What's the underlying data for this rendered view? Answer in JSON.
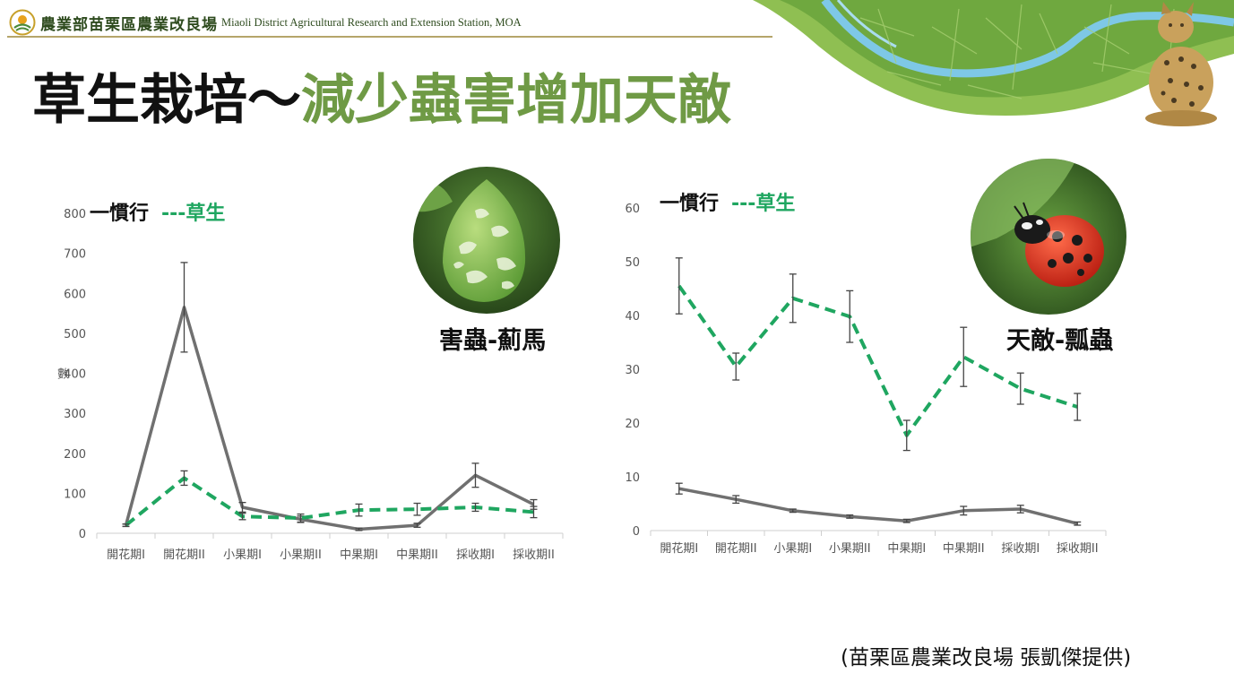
{
  "header": {
    "org_zh": "農業部苗栗區農業改良場",
    "org_en": "Miaoli District Agricultural Research and Extension Station, MOA"
  },
  "title": {
    "part1": "草生栽培～",
    "part2": "減少蟲害增加天敵"
  },
  "credit": "(苗栗區農業改良場 張凱傑提供)",
  "photos": {
    "pest_label": "害蟲-薊馬",
    "enemy_label": "天敵-瓢蟲"
  },
  "colors": {
    "conventional": "#707070",
    "grass": "#1fa660",
    "title_accent": "#6f9a45"
  },
  "chart_data": [
    {
      "type": "line",
      "title": "",
      "xlabel": "",
      "ylabel": "數",
      "ylim": [
        0,
        800
      ],
      "yticks": [
        "0",
        "100",
        "200",
        "300",
        "400",
        "500",
        "600",
        "700",
        "800"
      ],
      "legend_placement": "top-left",
      "categories": [
        "開花期I",
        "開花期II",
        "小果期I",
        "小果期II",
        "中果期I",
        "中果期II",
        "採收期I",
        "採收期II"
      ],
      "series": [
        {
          "name": "慣行",
          "legend_marker": "一",
          "style": "solid",
          "values": [
            20,
            565,
            65,
            35,
            10,
            20,
            145,
            72
          ],
          "errors": [
            3,
            112,
            12,
            8,
            3,
            5,
            30,
            12
          ]
        },
        {
          "name": "草生",
          "legend_marker": "---",
          "style": "dashed",
          "values": [
            20,
            138,
            42,
            38,
            58,
            60,
            65,
            53
          ],
          "errors": [
            3,
            18,
            8,
            10,
            15,
            15,
            10,
            14
          ]
        }
      ]
    },
    {
      "type": "line",
      "title": "",
      "xlabel": "",
      "ylabel": "",
      "ylim": [
        0,
        60
      ],
      "yticks": [
        "0",
        "10",
        "20",
        "30",
        "40",
        "50",
        "60"
      ],
      "legend_placement": "top-left",
      "categories": [
        "開花期I",
        "開花期II",
        "小果期I",
        "小果期II",
        "中果期I",
        "中果期II",
        "採收期I",
        "採收期II"
      ],
      "series": [
        {
          "name": "慣行",
          "legend_marker": "一",
          "style": "solid",
          "values": [
            7.8,
            5.8,
            3.7,
            2.6,
            1.8,
            3.7,
            4.0,
            1.3
          ],
          "errors": [
            1.0,
            0.7,
            0.3,
            0.3,
            0.3,
            0.8,
            0.7,
            0.3
          ]
        },
        {
          "name": "草生",
          "legend_marker": "---",
          "style": "dashed",
          "values": [
            45.5,
            30.5,
            43.2,
            39.8,
            17.7,
            32.3,
            26.4,
            23.0
          ],
          "errors": [
            5.2,
            2.5,
            4.5,
            4.8,
            2.8,
            5.5,
            2.9,
            2.5
          ]
        }
      ]
    }
  ]
}
